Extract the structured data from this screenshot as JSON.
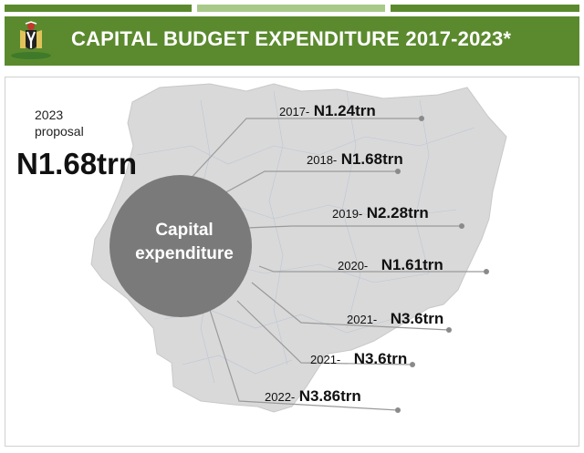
{
  "header": {
    "title": "CAPITAL BUDGET EXPENDITURE 2017-2023*",
    "band_color": "#5b8a2e",
    "emblem_icon": "nigeria-coat-of-arms-icon"
  },
  "proposal": {
    "year": "2023",
    "word": "proposal",
    "amount": "N1.68trn"
  },
  "hub": {
    "line1": "Capital",
    "line2": "expenditure",
    "color": "#7a7a7a"
  },
  "entries": [
    {
      "year": "2017-",
      "amount": "N1.24trn"
    },
    {
      "year": "2018-",
      "amount": "N1.68trn"
    },
    {
      "year": "2019-",
      "amount": "N2.28trn"
    },
    {
      "year": "2020-",
      "amount": "N1.61trn"
    },
    {
      "year": "2021-",
      "amount": "N3.6trn"
    },
    {
      "year": "2021-",
      "amount": "N3.6trn"
    },
    {
      "year": "2022-",
      "amount": "N3.86trn"
    }
  ]
}
